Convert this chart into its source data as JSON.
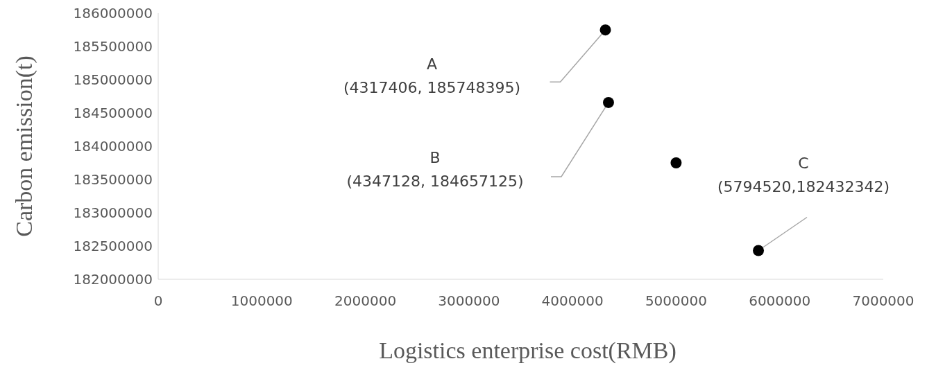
{
  "chart_data": {
    "type": "scatter",
    "xlabel": "Logistics enterprise cost(RMB)",
    "ylabel": "Carbon emission(t)",
    "x": [
      4317406,
      4347128,
      5000000,
      5794520
    ],
    "values": [
      185748395,
      184657125,
      183750000,
      182432342
    ],
    "color": "#000000",
    "marker": "circle",
    "xlim": [
      0,
      7000000
    ],
    "xticks": [
      0,
      1000000,
      2000000,
      3000000,
      4000000,
      5000000,
      6000000,
      7000000
    ],
    "ylim": [
      182000000,
      186000000
    ],
    "yticks": [
      182000000,
      182500000,
      183000000,
      183500000,
      184000000,
      184500000,
      185000000,
      185500000,
      186000000
    ],
    "annotations": [
      "A\n(4317406, 185748395)",
      "B\n(4347128, 184657125)",
      "C\n(5794520,182432342)"
    ]
  }
}
